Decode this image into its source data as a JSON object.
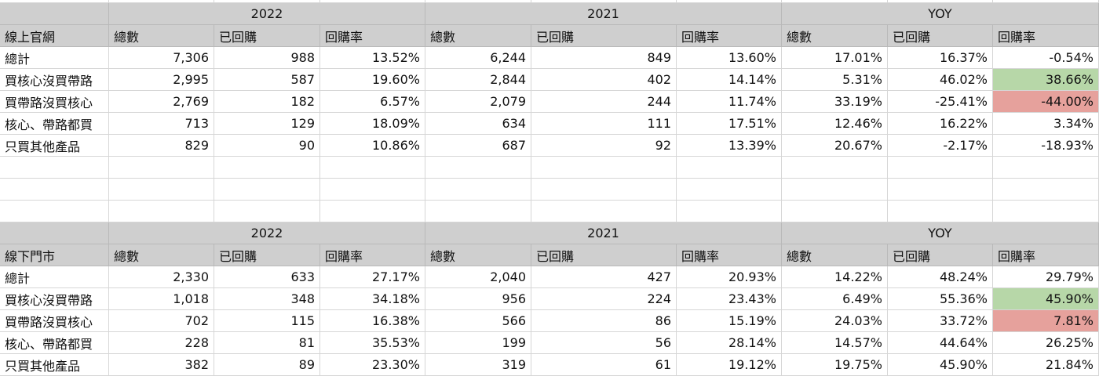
{
  "sections": [
    {
      "header": {
        "label": "",
        "groups": [
          {
            "label": "2022"
          },
          {
            "label": "2021"
          },
          {
            "label": "YOY"
          }
        ]
      },
      "subheader": [
        "線上官網",
        "總數",
        "已回購",
        "回購率",
        "總數",
        "已回購",
        "回購率",
        "總數",
        "已回購",
        "回購率"
      ],
      "rows": [
        [
          "總計",
          "7,306",
          "988",
          "13.52%",
          "6,244",
          "849",
          "13.60%",
          "17.01%",
          "16.37%",
          "-0.54%"
        ],
        [
          "買核心沒買帶路",
          "2,995",
          "587",
          "19.60%",
          "2,844",
          "402",
          "14.14%",
          "5.31%",
          "46.02%",
          "38.66%"
        ],
        [
          "買帶路沒買核心",
          "2,769",
          "182",
          "6.57%",
          "2,079",
          "244",
          "11.74%",
          "33.19%",
          "-25.41%",
          "-44.00%"
        ],
        [
          "核心、帶路都買",
          "713",
          "129",
          "18.09%",
          "634",
          "111",
          "17.51%",
          "12.46%",
          "16.22%",
          "3.34%"
        ],
        [
          "只買其他產品",
          "829",
          "90",
          "10.86%",
          "687",
          "92",
          "13.39%",
          "20.67%",
          "-2.17%",
          "-18.93%"
        ]
      ],
      "highlights": [
        {
          "row": 1,
          "col": 9,
          "color": "#b7d7a8"
        },
        {
          "row": 2,
          "col": 9,
          "color": "#e6a19c"
        }
      ]
    },
    {
      "header": {
        "label": "",
        "groups": [
          {
            "label": "2022"
          },
          {
            "label": "2021"
          },
          {
            "label": "YOY"
          }
        ]
      },
      "subheader": [
        "線下門市",
        "總數",
        "已回購",
        "回購率",
        "總數",
        "已回購",
        "回購率",
        "總數",
        "已回購",
        "回購率"
      ],
      "rows": [
        [
          "總計",
          "2,330",
          "633",
          "27.17%",
          "2,040",
          "427",
          "20.93%",
          "14.22%",
          "48.24%",
          "29.79%"
        ],
        [
          "買核心沒買帶路",
          "1,018",
          "348",
          "34.18%",
          "956",
          "224",
          "23.43%",
          "6.49%",
          "55.36%",
          "45.90%"
        ],
        [
          "買帶路沒買核心",
          "702",
          "115",
          "16.38%",
          "566",
          "86",
          "15.19%",
          "24.03%",
          "33.72%",
          "7.81%"
        ],
        [
          "核心、帶路都買",
          "228",
          "81",
          "35.53%",
          "199",
          "56",
          "28.14%",
          "14.57%",
          "44.64%",
          "26.25%"
        ],
        [
          "只買其他產品",
          "382",
          "89",
          "23.30%",
          "319",
          "61",
          "19.12%",
          "19.75%",
          "45.90%",
          "21.84%"
        ]
      ],
      "highlights": [
        {
          "row": 1,
          "col": 9,
          "color": "#b7d7a8"
        },
        {
          "row": 2,
          "col": 9,
          "color": "#e6a19c"
        }
      ]
    }
  ]
}
